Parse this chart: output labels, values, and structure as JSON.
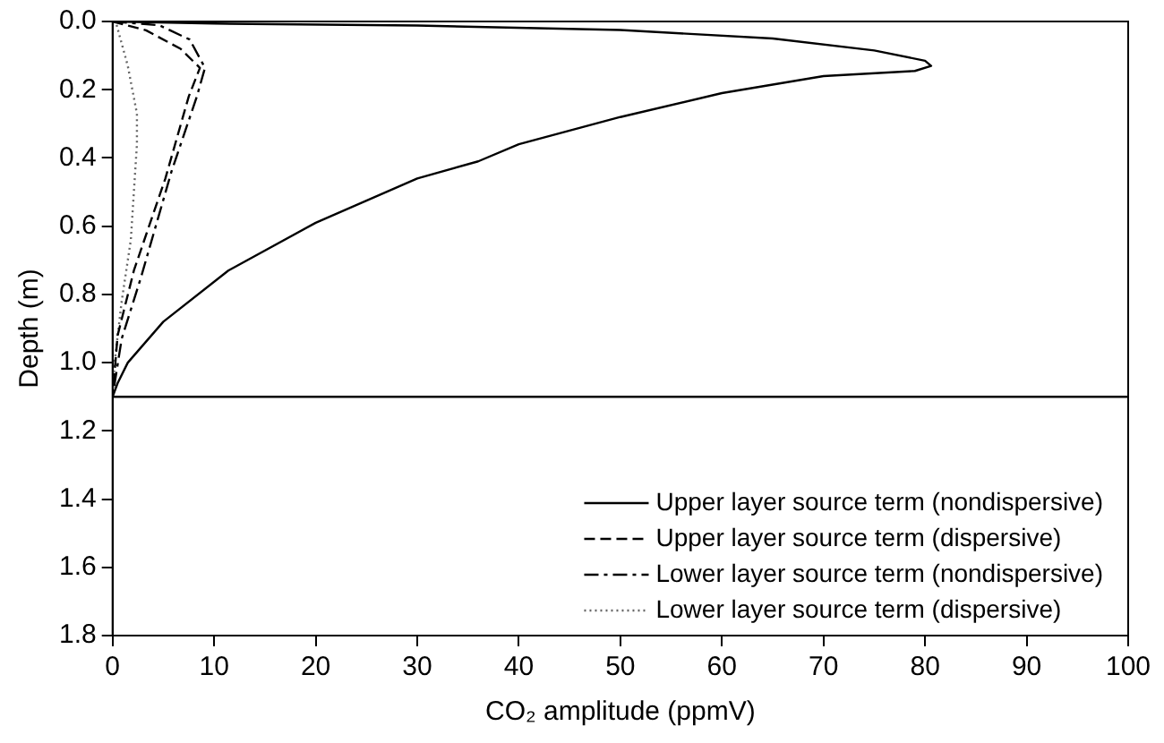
{
  "chart_data": {
    "type": "line",
    "xlabel": "CO₂ amplitude (ppmV)",
    "ylabel": "Depth (m)",
    "xlim": [
      0,
      100
    ],
    "xticks": [
      0,
      10,
      20,
      30,
      40,
      50,
      60,
      70,
      80,
      90,
      100
    ],
    "ylim": [
      1.8,
      0
    ],
    "yticks": [
      {
        "value": 0,
        "label": "0.0"
      },
      {
        "value": 0.2,
        "label": "0.2"
      },
      {
        "value": 0.4,
        "label": "0.4"
      },
      {
        "value": 0.6,
        "label": "0.6"
      },
      {
        "value": 0.8,
        "label": "0.8"
      },
      {
        "value": 1,
        "label": "1.0"
      },
      {
        "value": 1.2,
        "label": "1.2"
      },
      {
        "value": 1.4,
        "label": "1.4"
      },
      {
        "value": 1.6,
        "label": "1.6"
      },
      {
        "value": 1.8,
        "label": "1.8"
      }
    ],
    "grid": false,
    "legend": "bottom right",
    "marker": "none",
    "ref_lines": [
      {
        "axis": "y",
        "value": 1.1,
        "color": "#000000"
      }
    ],
    "series": [
      {
        "name": "Upper layer source term (nondispersive)",
        "color": "#000000",
        "line_style": "solid",
        "x": [
          0,
          10,
          30,
          50,
          65,
          75,
          80,
          80.6,
          79,
          70,
          60,
          50,
          40,
          36,
          30,
          20,
          11.4,
          5,
          1.5,
          0.5,
          0
        ],
        "values": [
          0,
          0.006,
          0.012,
          0.025,
          0.05,
          0.085,
          0.115,
          0.13,
          0.145,
          0.16,
          0.21,
          0.28,
          0.36,
          0.41,
          0.46,
          0.59,
          0.73,
          0.88,
          1,
          1.06,
          1.1
        ]
      },
      {
        "name": "Upper layer source term (dispersive)",
        "color": "#000000",
        "line_style": "dashed",
        "x": [
          0,
          3.3,
          6.7,
          8.6,
          7.5,
          5.2,
          2.1,
          0.5,
          0
        ],
        "values": [
          0,
          0.026,
          0.08,
          0.136,
          0.22,
          0.46,
          0.73,
          0.92,
          1.1
        ]
      },
      {
        "name": "Lower layer source term (nondispersive)",
        "color": "#000000",
        "line_style": "dashdot",
        "x": [
          0,
          4.6,
          7.6,
          9.1,
          8.3,
          5.8,
          2.8,
          0.9,
          0
        ],
        "values": [
          0,
          0.011,
          0.053,
          0.136,
          0.22,
          0.44,
          0.75,
          0.93,
          1.1
        ]
      },
      {
        "name": "Lower layer source term (dispersive)",
        "color": "#666666",
        "line_style": "dotted",
        "x": [
          0,
          0.4,
          1.5,
          2.4,
          2.4,
          1.8,
          0.9,
          0.2,
          0
        ],
        "values": [
          0,
          0.01,
          0.13,
          0.27,
          0.36,
          0.64,
          0.82,
          1,
          1.1
        ]
      }
    ]
  }
}
